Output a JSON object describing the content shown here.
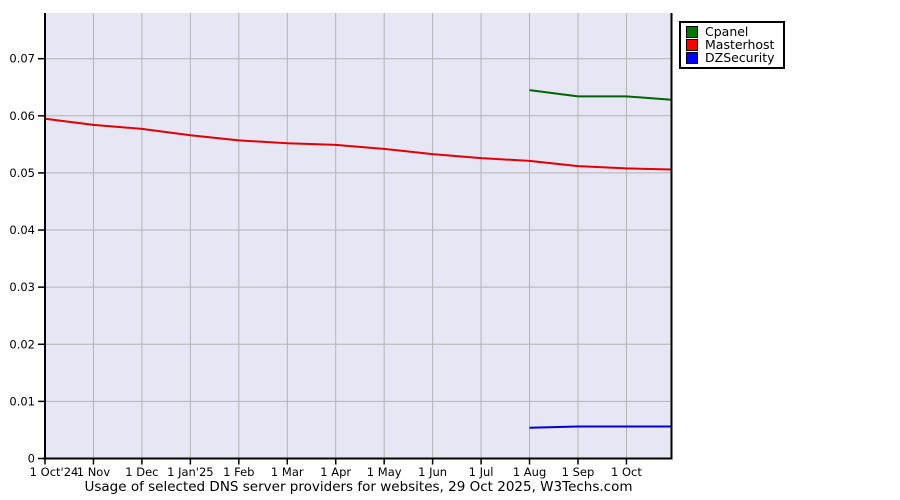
{
  "title": "Usage of selected DNS server providers for websites, 29 Oct 2025, W3Techs.com",
  "legend": {
    "items": [
      {
        "label": "Cpanel",
        "color": "#007700"
      },
      {
        "label": "Masterhost",
        "color": "#ff0000"
      },
      {
        "label": "DZSecurity",
        "color": "#0000ff"
      }
    ]
  },
  "chart_data": {
    "type": "line",
    "title": "Usage of selected DNS server providers for websites, 29 Oct 2025, W3Techs.com",
    "x_unit": "months since 1 Oct 2024",
    "xtick_labels": [
      "1 Oct'24",
      "1 Nov",
      "1 Dec",
      "1 Jan'25",
      "1 Feb",
      "1 Mar",
      "1 Apr",
      "1 May",
      "1 Jun",
      "1 Jul",
      "1 Aug",
      "1 Sep",
      "1 Oct"
    ],
    "xtick_positions": [
      0,
      1,
      2,
      3,
      4,
      5,
      6,
      7,
      8,
      9,
      10,
      11,
      12
    ],
    "xlim": [
      0,
      12.93
    ],
    "ytick_labels": [
      "0",
      "0.01",
      "0.02",
      "0.03",
      "0.04",
      "0.05",
      "0.06",
      "0.07"
    ],
    "ytick_values": [
      0,
      0.01,
      0.02,
      0.03,
      0.04,
      0.05,
      0.06,
      0.07
    ],
    "ylim": [
      0,
      0.078
    ],
    "grid": true,
    "plot_bg": "#e6e6f5",
    "grid_color": "#b3b3b3",
    "legend_position": "top-right-outside",
    "series": [
      {
        "name": "Cpanel",
        "color": "#006600",
        "x": [
          10,
          11,
          12,
          12.93
        ],
        "values": [
          0.0645,
          0.0634,
          0.0634,
          0.0628
        ]
      },
      {
        "name": "Masterhost",
        "color": "#e40000",
        "x": [
          0,
          1,
          2,
          3,
          4,
          5,
          6,
          7,
          8,
          9,
          10,
          11,
          12,
          12.93
        ],
        "values": [
          0.0595,
          0.0584,
          0.0577,
          0.0566,
          0.0557,
          0.0552,
          0.0549,
          0.0542,
          0.0533,
          0.0526,
          0.0521,
          0.0512,
          0.0508,
          0.0506
        ]
      },
      {
        "name": "DZSecurity",
        "color": "#0000dd",
        "x": [
          10,
          11,
          12,
          12.93
        ],
        "values": [
          0.0054,
          0.0056,
          0.0056,
          0.0056
        ]
      }
    ]
  }
}
